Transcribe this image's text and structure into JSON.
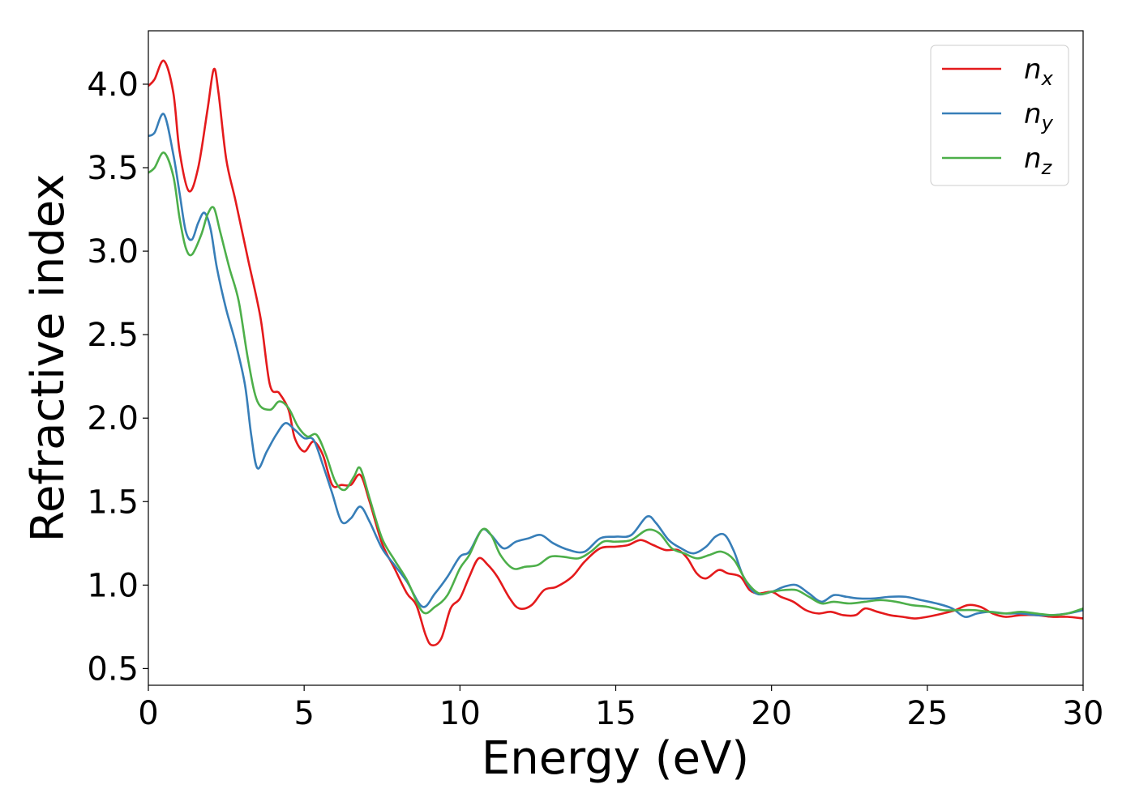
{
  "chart_data": {
    "type": "line",
    "title": "",
    "xlabel": "Energy (eV)",
    "ylabel": "Refractive index",
    "xlim": [
      0,
      30
    ],
    "ylim": [
      0.4,
      4.32
    ],
    "xticks": [
      0,
      5,
      10,
      15,
      20,
      25,
      30
    ],
    "xtick_labels": [
      "0",
      "5",
      "10",
      "15",
      "20",
      "25",
      "30"
    ],
    "yticks": [
      0.5,
      1.0,
      1.5,
      2.0,
      2.5,
      3.0,
      3.5,
      4.0
    ],
    "ytick_labels": [
      "0.5",
      "1.0",
      "1.5",
      "2.0",
      "2.5",
      "3.0",
      "3.5",
      "4.0"
    ],
    "grid": false,
    "legend_position": "top-right",
    "series": [
      {
        "name": "n",
        "subscript": "x",
        "color": "#e41a1c",
        "points": [
          [
            0,
            3.99
          ],
          [
            0.2,
            4.03
          ],
          [
            0.5,
            4.14
          ],
          [
            0.8,
            3.95
          ],
          [
            1.0,
            3.6
          ],
          [
            1.3,
            3.36
          ],
          [
            1.6,
            3.5
          ],
          [
            1.9,
            3.85
          ],
          [
            2.1,
            4.09
          ],
          [
            2.25,
            3.95
          ],
          [
            2.5,
            3.55
          ],
          [
            2.8,
            3.3
          ],
          [
            3.2,
            2.95
          ],
          [
            3.6,
            2.6
          ],
          [
            3.9,
            2.2
          ],
          [
            4.2,
            2.15
          ],
          [
            4.5,
            2.05
          ],
          [
            4.7,
            1.88
          ],
          [
            5.0,
            1.8
          ],
          [
            5.3,
            1.86
          ],
          [
            5.6,
            1.78
          ],
          [
            5.9,
            1.6
          ],
          [
            6.2,
            1.6
          ],
          [
            6.5,
            1.6
          ],
          [
            6.8,
            1.66
          ],
          [
            7.1,
            1.5
          ],
          [
            7.5,
            1.25
          ],
          [
            7.9,
            1.1
          ],
          [
            8.3,
            0.95
          ],
          [
            8.6,
            0.88
          ],
          [
            8.9,
            0.7
          ],
          [
            9.1,
            0.64
          ],
          [
            9.4,
            0.68
          ],
          [
            9.7,
            0.86
          ],
          [
            10.0,
            0.92
          ],
          [
            10.3,
            1.05
          ],
          [
            10.6,
            1.16
          ],
          [
            10.9,
            1.12
          ],
          [
            11.2,
            1.05
          ],
          [
            11.6,
            0.92
          ],
          [
            11.9,
            0.86
          ],
          [
            12.3,
            0.88
          ],
          [
            12.7,
            0.97
          ],
          [
            13.1,
            0.99
          ],
          [
            13.6,
            1.05
          ],
          [
            14.0,
            1.14
          ],
          [
            14.5,
            1.22
          ],
          [
            15.0,
            1.23
          ],
          [
            15.4,
            1.24
          ],
          [
            15.8,
            1.27
          ],
          [
            16.2,
            1.24
          ],
          [
            16.6,
            1.21
          ],
          [
            17.0,
            1.21
          ],
          [
            17.3,
            1.16
          ],
          [
            17.6,
            1.07
          ],
          [
            17.9,
            1.04
          ],
          [
            18.3,
            1.09
          ],
          [
            18.6,
            1.07
          ],
          [
            19.0,
            1.05
          ],
          [
            19.3,
            0.97
          ],
          [
            19.6,
            0.95
          ],
          [
            20.0,
            0.96
          ],
          [
            20.3,
            0.93
          ],
          [
            20.7,
            0.9
          ],
          [
            21.1,
            0.85
          ],
          [
            21.5,
            0.83
          ],
          [
            21.9,
            0.84
          ],
          [
            22.3,
            0.82
          ],
          [
            22.7,
            0.82
          ],
          [
            23.0,
            0.86
          ],
          [
            23.4,
            0.84
          ],
          [
            23.8,
            0.82
          ],
          [
            24.2,
            0.81
          ],
          [
            24.6,
            0.8
          ],
          [
            25.0,
            0.81
          ],
          [
            25.5,
            0.83
          ],
          [
            25.9,
            0.85
          ],
          [
            26.3,
            0.88
          ],
          [
            26.7,
            0.87
          ],
          [
            27.1,
            0.83
          ],
          [
            27.5,
            0.81
          ],
          [
            28.0,
            0.82
          ],
          [
            28.5,
            0.82
          ],
          [
            29.0,
            0.81
          ],
          [
            29.5,
            0.81
          ],
          [
            30.0,
            0.8
          ]
        ]
      },
      {
        "name": "n",
        "subscript": "y",
        "color": "#377eb8",
        "points": [
          [
            0,
            3.69
          ],
          [
            0.2,
            3.71
          ],
          [
            0.5,
            3.82
          ],
          [
            0.8,
            3.58
          ],
          [
            1.0,
            3.35
          ],
          [
            1.2,
            3.12
          ],
          [
            1.4,
            3.07
          ],
          [
            1.6,
            3.17
          ],
          [
            1.8,
            3.23
          ],
          [
            2.0,
            3.13
          ],
          [
            2.2,
            2.9
          ],
          [
            2.5,
            2.65
          ],
          [
            2.8,
            2.45
          ],
          [
            3.1,
            2.2
          ],
          [
            3.3,
            1.9
          ],
          [
            3.5,
            1.7
          ],
          [
            3.8,
            1.8
          ],
          [
            4.1,
            1.9
          ],
          [
            4.4,
            1.97
          ],
          [
            4.7,
            1.93
          ],
          [
            5.0,
            1.88
          ],
          [
            5.3,
            1.87
          ],
          [
            5.6,
            1.72
          ],
          [
            5.9,
            1.55
          ],
          [
            6.2,
            1.38
          ],
          [
            6.5,
            1.4
          ],
          [
            6.8,
            1.47
          ],
          [
            7.1,
            1.38
          ],
          [
            7.5,
            1.22
          ],
          [
            7.9,
            1.12
          ],
          [
            8.3,
            1.02
          ],
          [
            8.8,
            0.87
          ],
          [
            9.2,
            0.95
          ],
          [
            9.6,
            1.05
          ],
          [
            10.0,
            1.17
          ],
          [
            10.3,
            1.2
          ],
          [
            10.7,
            1.33
          ],
          [
            11.0,
            1.3
          ],
          [
            11.4,
            1.22
          ],
          [
            11.8,
            1.26
          ],
          [
            12.2,
            1.28
          ],
          [
            12.6,
            1.3
          ],
          [
            13.0,
            1.25
          ],
          [
            13.5,
            1.21
          ],
          [
            14.0,
            1.2
          ],
          [
            14.5,
            1.28
          ],
          [
            15.0,
            1.29
          ],
          [
            15.5,
            1.3
          ],
          [
            16.0,
            1.41
          ],
          [
            16.3,
            1.37
          ],
          [
            16.7,
            1.27
          ],
          [
            17.1,
            1.22
          ],
          [
            17.5,
            1.19
          ],
          [
            17.9,
            1.23
          ],
          [
            18.2,
            1.29
          ],
          [
            18.5,
            1.3
          ],
          [
            18.8,
            1.2
          ],
          [
            19.1,
            1.05
          ],
          [
            19.5,
            0.95
          ],
          [
            20.0,
            0.96
          ],
          [
            20.4,
            0.99
          ],
          [
            20.8,
            1.0
          ],
          [
            21.2,
            0.95
          ],
          [
            21.6,
            0.9
          ],
          [
            22.0,
            0.94
          ],
          [
            22.4,
            0.93
          ],
          [
            22.8,
            0.92
          ],
          [
            23.3,
            0.92
          ],
          [
            23.8,
            0.93
          ],
          [
            24.3,
            0.93
          ],
          [
            24.8,
            0.91
          ],
          [
            25.3,
            0.89
          ],
          [
            25.8,
            0.86
          ],
          [
            26.2,
            0.81
          ],
          [
            26.6,
            0.83
          ],
          [
            27.0,
            0.84
          ],
          [
            27.5,
            0.83
          ],
          [
            28.0,
            0.83
          ],
          [
            28.5,
            0.82
          ],
          [
            29.0,
            0.82
          ],
          [
            29.5,
            0.83
          ],
          [
            30.0,
            0.85
          ]
        ]
      },
      {
        "name": "n",
        "subscript": "z",
        "color": "#4daf4a",
        "points": [
          [
            0,
            3.47
          ],
          [
            0.2,
            3.5
          ],
          [
            0.5,
            3.59
          ],
          [
            0.8,
            3.45
          ],
          [
            1.0,
            3.2
          ],
          [
            1.2,
            3.02
          ],
          [
            1.4,
            2.98
          ],
          [
            1.7,
            3.1
          ],
          [
            1.9,
            3.22
          ],
          [
            2.1,
            3.26
          ],
          [
            2.3,
            3.12
          ],
          [
            2.6,
            2.9
          ],
          [
            2.9,
            2.7
          ],
          [
            3.2,
            2.35
          ],
          [
            3.5,
            2.1
          ],
          [
            3.9,
            2.05
          ],
          [
            4.2,
            2.1
          ],
          [
            4.5,
            2.06
          ],
          [
            4.8,
            1.95
          ],
          [
            5.1,
            1.89
          ],
          [
            5.4,
            1.9
          ],
          [
            5.7,
            1.78
          ],
          [
            6.0,
            1.62
          ],
          [
            6.3,
            1.57
          ],
          [
            6.6,
            1.65
          ],
          [
            6.8,
            1.7
          ],
          [
            7.1,
            1.52
          ],
          [
            7.5,
            1.28
          ],
          [
            7.9,
            1.15
          ],
          [
            8.3,
            1.03
          ],
          [
            8.8,
            0.84
          ],
          [
            9.2,
            0.87
          ],
          [
            9.6,
            0.94
          ],
          [
            10.0,
            1.1
          ],
          [
            10.3,
            1.18
          ],
          [
            10.7,
            1.33
          ],
          [
            11.0,
            1.3
          ],
          [
            11.3,
            1.18
          ],
          [
            11.7,
            1.1
          ],
          [
            12.1,
            1.11
          ],
          [
            12.5,
            1.12
          ],
          [
            12.9,
            1.17
          ],
          [
            13.3,
            1.17
          ],
          [
            13.8,
            1.16
          ],
          [
            14.2,
            1.2
          ],
          [
            14.6,
            1.26
          ],
          [
            15.0,
            1.26
          ],
          [
            15.5,
            1.27
          ],
          [
            16.0,
            1.33
          ],
          [
            16.4,
            1.31
          ],
          [
            16.8,
            1.22
          ],
          [
            17.2,
            1.19
          ],
          [
            17.6,
            1.16
          ],
          [
            18.0,
            1.18
          ],
          [
            18.4,
            1.2
          ],
          [
            18.8,
            1.15
          ],
          [
            19.2,
            1.02
          ],
          [
            19.6,
            0.95
          ],
          [
            20.0,
            0.96
          ],
          [
            20.4,
            0.97
          ],
          [
            20.8,
            0.97
          ],
          [
            21.2,
            0.93
          ],
          [
            21.6,
            0.89
          ],
          [
            22.0,
            0.9
          ],
          [
            22.5,
            0.89
          ],
          [
            23.0,
            0.9
          ],
          [
            23.5,
            0.91
          ],
          [
            24.0,
            0.9
          ],
          [
            24.5,
            0.88
          ],
          [
            25.0,
            0.87
          ],
          [
            25.5,
            0.85
          ],
          [
            26.0,
            0.85
          ],
          [
            26.5,
            0.85
          ],
          [
            27.0,
            0.84
          ],
          [
            27.5,
            0.83
          ],
          [
            28.0,
            0.84
          ],
          [
            28.5,
            0.83
          ],
          [
            29.0,
            0.82
          ],
          [
            29.5,
            0.83
          ],
          [
            30.0,
            0.86
          ]
        ]
      }
    ]
  }
}
